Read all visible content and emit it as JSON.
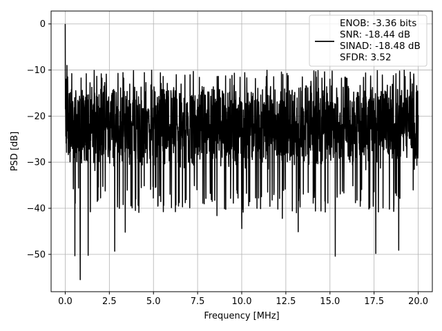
{
  "chart_data": {
    "type": "line",
    "title": "",
    "xlabel": "Frequency [MHz]",
    "ylabel": "PSD [dB]",
    "xlim": [
      -0.8,
      20.8
    ],
    "ylim": [
      -58.1,
      2.8
    ],
    "xticks": [
      0.0,
      2.5,
      5.0,
      7.5,
      10.0,
      12.5,
      15.0,
      17.5,
      20.0
    ],
    "xtick_labels": [
      "0.0",
      "2.5",
      "5.0",
      "7.5",
      "10.0",
      "12.5",
      "15.0",
      "17.5",
      "20.0"
    ],
    "yticks": [
      0,
      -10,
      -20,
      -30,
      -40,
      -50
    ],
    "ytick_labels": [
      "0",
      "−10",
      "−20",
      "−30",
      "−40",
      "−50"
    ],
    "grid": true,
    "legend_position": "top-right",
    "line_color": "#000000",
    "grid_color": "#b0b0b0",
    "series": [
      {
        "name": "ENOB: -3.36 bits\nSNR: -18.44 dB\nSINAD: -18.48 dB\nSFDR: 3.52",
        "legend_lines": [
          "ENOB: -3.36 bits",
          "SNR: -18.44 dB",
          "SINAD: -18.48 dB",
          "SFDR: 3.52"
        ],
        "x_range": [
          0.0,
          20.0
        ],
        "points": 2048,
        "baseline_db": -22,
        "peaks": [
          {
            "x": 0.0,
            "y": 0.0
          },
          {
            "x": 0.05,
            "y": -12.0
          },
          {
            "x": 0.1,
            "y": -9.0
          },
          {
            "x": 0.15,
            "y": -14.0
          }
        ],
        "upper_envelope_db": -12,
        "lower_envelope_db": -35,
        "deep_nulls": [
          {
            "x": 0.55,
            "y": -50.3
          },
          {
            "x": 0.85,
            "y": -55.5
          },
          {
            "x": 1.3,
            "y": -50.2
          },
          {
            "x": 2.8,
            "y": -49.3
          },
          {
            "x": 3.4,
            "y": -45.2
          },
          {
            "x": 10.0,
            "y": -44.4
          },
          {
            "x": 13.2,
            "y": -45.1
          },
          {
            "x": 15.3,
            "y": -50.4
          },
          {
            "x": 17.6,
            "y": -49.8
          },
          {
            "x": 18.9,
            "y": -49.1
          },
          {
            "x": 8.6,
            "y": -41.6
          },
          {
            "x": 12.3,
            "y": -42.2
          }
        ]
      }
    ]
  }
}
